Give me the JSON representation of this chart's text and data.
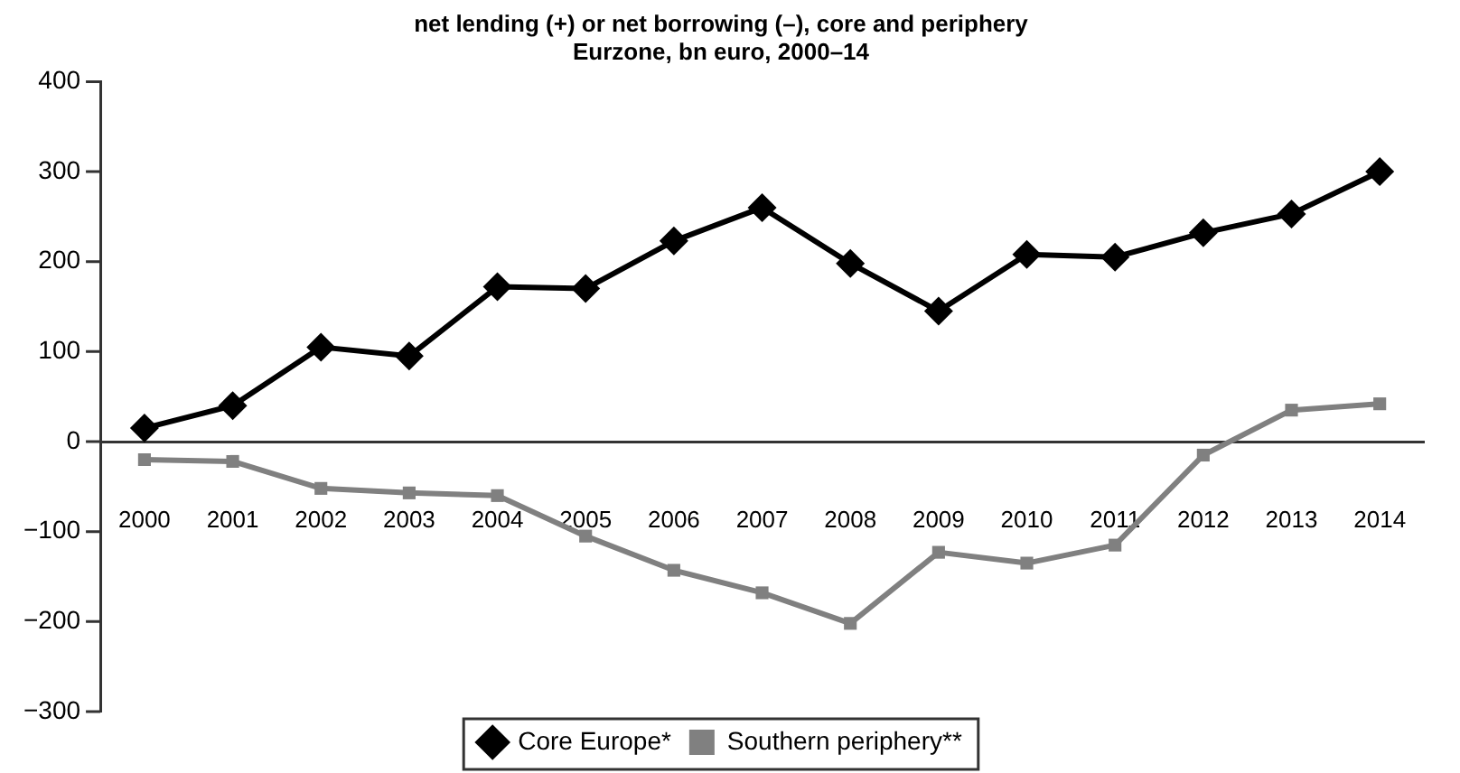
{
  "chart_data": {
    "type": "line",
    "title": "net lending (+) or net borrowing (–), core and periphery",
    "subtitle": "Eurzone, bn euro, 2000–14",
    "categories": [
      "2000",
      "2001",
      "2002",
      "2003",
      "2004",
      "2005",
      "2006",
      "2007",
      "2008",
      "2009",
      "2010",
      "2011",
      "2012",
      "2013",
      "2014"
    ],
    "series": [
      {
        "name": "Core Europe*",
        "color": "#000000",
        "marker": "diamond",
        "values": [
          15,
          40,
          105,
          95,
          172,
          170,
          223,
          260,
          198,
          145,
          208,
          205,
          232,
          253,
          300
        ]
      },
      {
        "name": "Southern periphery**",
        "color": "#808080",
        "marker": "square",
        "values": [
          -20,
          -22,
          -52,
          -57,
          -60,
          -105,
          -143,
          -168,
          -202,
          -123,
          -135,
          -115,
          -15,
          35,
          42
        ]
      }
    ],
    "ylim": [
      -300,
      400
    ],
    "yticks": [
      -300,
      -200,
      -100,
      0,
      100,
      200,
      300,
      400
    ],
    "legend": "bottom"
  }
}
